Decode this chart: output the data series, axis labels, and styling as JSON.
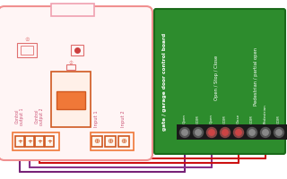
{
  "bg": "#ffffff",
  "dev_fill": "#fff5f5",
  "dev_border": "#f09090",
  "dev_border2": "#f0a0b0",
  "green_fill": "#2d8c2d",
  "green_border": "#1a6a1a",
  "orange": "#f07838",
  "orange_dark": "#d05820",
  "pink_text": "#cc5577",
  "red_wire": "#cc1111",
  "purple_wire1": "#cc3399",
  "purple_wire2": "#993399",
  "purple_wire3": "#883388",
  "purple_wire4": "#772277",
  "pin_labels": [
    "Open",
    "COM",
    "Open",
    "COM",
    "Close",
    "COM",
    "Pedestrian",
    "COM"
  ],
  "board_label1": "Open / Stop / Close",
  "board_label2": "Pedestrian / partial open",
  "board_title": "gate / garage door control board"
}
